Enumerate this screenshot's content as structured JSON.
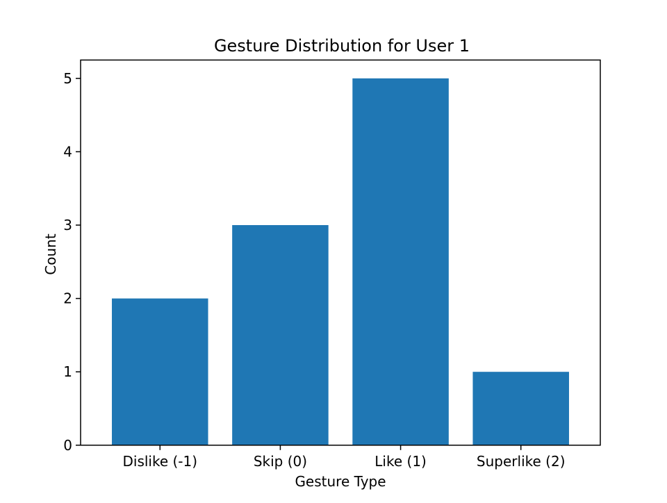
{
  "chart_data": {
    "type": "bar",
    "title": "Gesture Distribution for User 1",
    "xlabel": "Gesture Type",
    "ylabel": "Count",
    "categories": [
      "Dislike (-1)",
      "Skip (0)",
      "Like (1)",
      "Superlike (2)"
    ],
    "values": [
      2,
      3,
      5,
      1
    ],
    "ylim": [
      0,
      5.25
    ],
    "yticks": [
      0,
      1,
      2,
      3,
      4,
      5
    ],
    "bar_color": "#1f77b4",
    "grid": false,
    "legend": "none"
  }
}
